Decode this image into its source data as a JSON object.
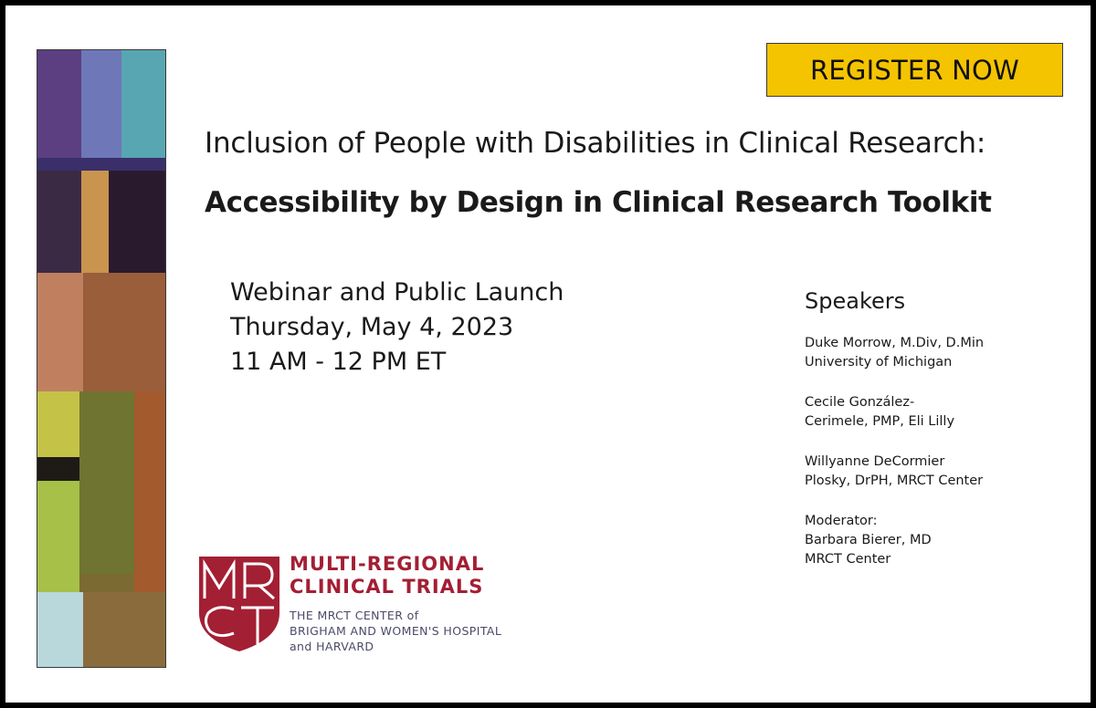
{
  "register_label": "REGISTER NOW",
  "title_line1": "Inclusion of People with Disabilities in Clinical Research:",
  "title_line2": "Accessibility by Design in Clinical Research Toolkit",
  "event": {
    "name": "Webinar and Public Launch",
    "date": "Thursday, May 4, 2023",
    "time": "11 AM - 12 PM ET"
  },
  "speakers": {
    "heading": "Speakers",
    "entries": [
      {
        "line1": "Duke Morrow, M.Div, D.Min",
        "line2": "University of Michigan"
      },
      {
        "line1": "Cecile González-",
        "line2": "Cerimele, PMP, Eli Lilly"
      },
      {
        "line1": "Willyanne DeCormier",
        "line2": "Plosky, DrPH, MRCT Center"
      }
    ],
    "moderator": {
      "label": "Moderator:",
      "name": "Barbara Bierer, MD",
      "org": "MRCT Center"
    }
  },
  "logo": {
    "monogram": "MRCT",
    "name_line1": "MULTI-REGIONAL",
    "name_line2": "CLINICAL TRIALS",
    "sub_line1": "THE MRCT CENTER of",
    "sub_line2": "BRIGHAM AND WOMEN'S HOSPITAL",
    "sub_line3": "and HARVARD"
  },
  "colors": {
    "accent_yellow": "#f5c400",
    "brand_red": "#a31f34",
    "frame": "#000000"
  }
}
